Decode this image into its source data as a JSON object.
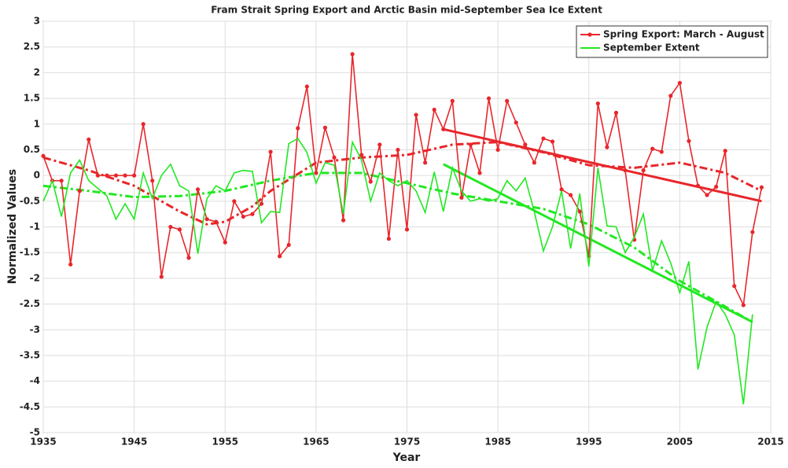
{
  "chart_data": {
    "type": "line",
    "title": "Fram Strait Spring Export and Arctic Basin mid-September Sea Ice Extent",
    "x_label": "Year",
    "y_label": "Normalized Values",
    "xlim": [
      1935,
      2015
    ],
    "xticks": [
      1935,
      1945,
      1955,
      1965,
      1975,
      1985,
      1995,
      2005,
      2015
    ],
    "ylim": [
      -5,
      3
    ],
    "yticks": [
      3,
      2.5,
      2,
      1.5,
      1,
      0.5,
      0,
      -0.5,
      -1,
      -1.5,
      -2,
      -2.5,
      -3,
      -3.5,
      -4,
      -4.5,
      -5
    ],
    "grid": true,
    "legend": "upper right",
    "series": [
      {
        "name": "Spring Export: March - August",
        "color": "#e8262b",
        "marker": true,
        "x": [
          1935,
          1936,
          1937,
          1938,
          1939,
          1940,
          1941,
          1942,
          1943,
          1944,
          1945,
          1946,
          1947,
          1948,
          1949,
          1950,
          1951,
          1952,
          1953,
          1954,
          1955,
          1956,
          1957,
          1958,
          1959,
          1960,
          1961,
          1962,
          1963,
          1964,
          1965,
          1966,
          1967,
          1968,
          1969,
          1970,
          1971,
          1972,
          1973,
          1974,
          1975,
          1976,
          1977,
          1978,
          1979,
          1980,
          1981,
          1982,
          1983,
          1984,
          1985,
          1986,
          1987,
          1988,
          1989,
          1990,
          1991,
          1992,
          1993,
          1994,
          1995,
          1996,
          1997,
          1998,
          1999,
          2000,
          2001,
          2002,
          2003,
          2004,
          2005,
          2006,
          2007,
          2008,
          2009,
          2010,
          2011,
          2012,
          2013,
          2014
        ],
        "values": [
          0.38,
          -0.1,
          -0.1,
          -1.73,
          -0.3,
          0.7,
          0,
          0,
          0,
          0,
          0,
          1.0,
          -0.1,
          -1.97,
          -1.0,
          -1.05,
          -1.6,
          -0.27,
          -0.85,
          -0.9,
          -1.3,
          -0.5,
          -0.8,
          -0.75,
          -0.55,
          0.46,
          -1.57,
          -1.35,
          0.92,
          1.73,
          0.05,
          0.93,
          0.35,
          -0.87,
          2.36,
          0.4,
          -0.12,
          0.6,
          -1.23,
          0.5,
          -1.05,
          1.18,
          0.25,
          1.28,
          0.9,
          1.45,
          -0.43,
          0.6,
          0.05,
          1.5,
          0.5,
          1.45,
          1.03,
          0.6,
          0.25,
          0.72,
          0.66,
          -0.27,
          -0.38,
          -0.7,
          -1.57,
          1.4,
          0.55,
          1.22,
          0.1,
          -1.25,
          0.1,
          0.52,
          0.46,
          1.55,
          1.8,
          0.67,
          -0.2,
          -0.38,
          -0.22,
          0.48,
          -2.15,
          -2.52,
          -1.1,
          -0.23
        ]
      },
      {
        "name": "September Extent",
        "color": "#22e822",
        "marker": false,
        "x": [
          1935,
          1936,
          1937,
          1938,
          1939,
          1940,
          1941,
          1942,
          1943,
          1944,
          1945,
          1946,
          1947,
          1948,
          1949,
          1950,
          1951,
          1952,
          1953,
          1954,
          1955,
          1956,
          1957,
          1958,
          1959,
          1960,
          1961,
          1962,
          1963,
          1964,
          1965,
          1966,
          1967,
          1968,
          1969,
          1970,
          1971,
          1972,
          1973,
          1974,
          1975,
          1976,
          1977,
          1978,
          1979,
          1980,
          1981,
          1982,
          1983,
          1984,
          1985,
          1986,
          1987,
          1988,
          1989,
          1990,
          1991,
          1992,
          1993,
          1994,
          1995,
          1996,
          1997,
          1998,
          1999,
          2000,
          2001,
          2002,
          2003,
          2004,
          2005,
          2006,
          2007,
          2008,
          2009,
          2010,
          2011,
          2012,
          2013
        ],
        "values": [
          -0.5,
          -0.1,
          -0.8,
          0.05,
          0.3,
          -0.1,
          -0.25,
          -0.4,
          -0.85,
          -0.55,
          -0.85,
          0.05,
          -0.45,
          0.0,
          0.22,
          -0.2,
          -0.3,
          -1.52,
          -0.45,
          -0.2,
          -0.3,
          0.05,
          0.1,
          0.08,
          -0.92,
          -0.7,
          -0.72,
          0.62,
          0.72,
          0.45,
          -0.15,
          0.25,
          0.2,
          -0.75,
          0.65,
          0.3,
          -0.5,
          0.05,
          -0.1,
          -0.2,
          -0.1,
          -0.3,
          -0.72,
          0.07,
          -0.7,
          0.15,
          -0.3,
          -0.5,
          -0.45,
          -0.5,
          -0.45,
          -0.1,
          -0.3,
          -0.05,
          -0.7,
          -1.47,
          -1.0,
          -0.3,
          -1.42,
          -0.35,
          -1.77,
          0.15,
          -0.98,
          -1.0,
          -1.5,
          -1.2,
          -0.75,
          -1.85,
          -1.27,
          -1.7,
          -2.28,
          -1.67,
          -3.77,
          -2.95,
          -2.45,
          -2.7,
          -3.1,
          -4.45,
          -2.7
        ]
      }
    ],
    "smoothed": [
      {
        "color": "#e8262b",
        "x": [
          1935,
          1940,
          1945,
          1950,
          1953,
          1955,
          1958,
          1960,
          1965,
          1970,
          1975,
          1980,
          1985,
          1990,
          1995,
          2000,
          2005,
          2010,
          2014
        ],
        "values": [
          0.35,
          0.1,
          -0.2,
          -0.7,
          -0.95,
          -0.9,
          -0.6,
          -0.3,
          0.25,
          0.35,
          0.4,
          0.6,
          0.65,
          0.45,
          0.2,
          0.15,
          0.25,
          0.05,
          -0.3
        ]
      },
      {
        "color": "#22e822",
        "x": [
          1935,
          1940,
          1945,
          1950,
          1955,
          1960,
          1965,
          1970,
          1975,
          1980,
          1985,
          1990,
          1995,
          2000,
          2005,
          2010,
          2013
        ],
        "values": [
          -0.2,
          -0.3,
          -0.42,
          -0.4,
          -0.3,
          -0.1,
          0.05,
          0.05,
          -0.15,
          -0.35,
          -0.5,
          -0.65,
          -0.95,
          -1.4,
          -2.05,
          -2.55,
          -2.85
        ]
      }
    ],
    "trends": [
      {
        "color": "#e8262b",
        "x": [
          1979,
          2014
        ],
        "values": [
          0.9,
          -0.5
        ]
      },
      {
        "color": "#22e822",
        "x": [
          1979,
          2013
        ],
        "values": [
          0.22,
          -2.85
        ]
      }
    ]
  }
}
